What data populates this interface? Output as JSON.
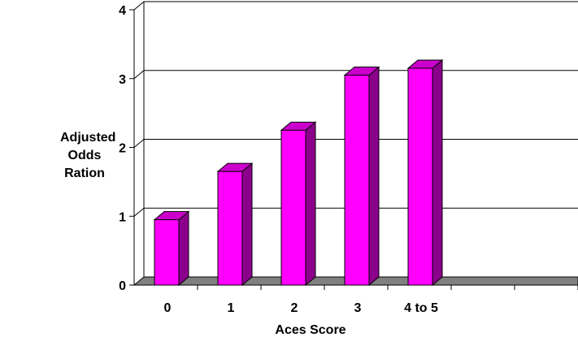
{
  "chart_data": {
    "type": "bar",
    "title": "",
    "xlabel": "Aces Score",
    "ylabel_lines": [
      "Adjusted",
      "Odds Ration"
    ],
    "categories": [
      "0",
      "1",
      "2",
      "3",
      "4 to 5"
    ],
    "values": [
      0.95,
      1.65,
      2.25,
      3.05,
      3.15
    ],
    "ylim": [
      0,
      4
    ],
    "yticks": [
      0,
      1,
      2,
      3,
      4
    ],
    "grid": true,
    "legend": "none",
    "colors": {
      "bar_front": "#ff00ff",
      "bar_side": "#8b008b",
      "bar_top": "#cc00cc",
      "floor": "#808080",
      "gridline": "#000000"
    }
  }
}
